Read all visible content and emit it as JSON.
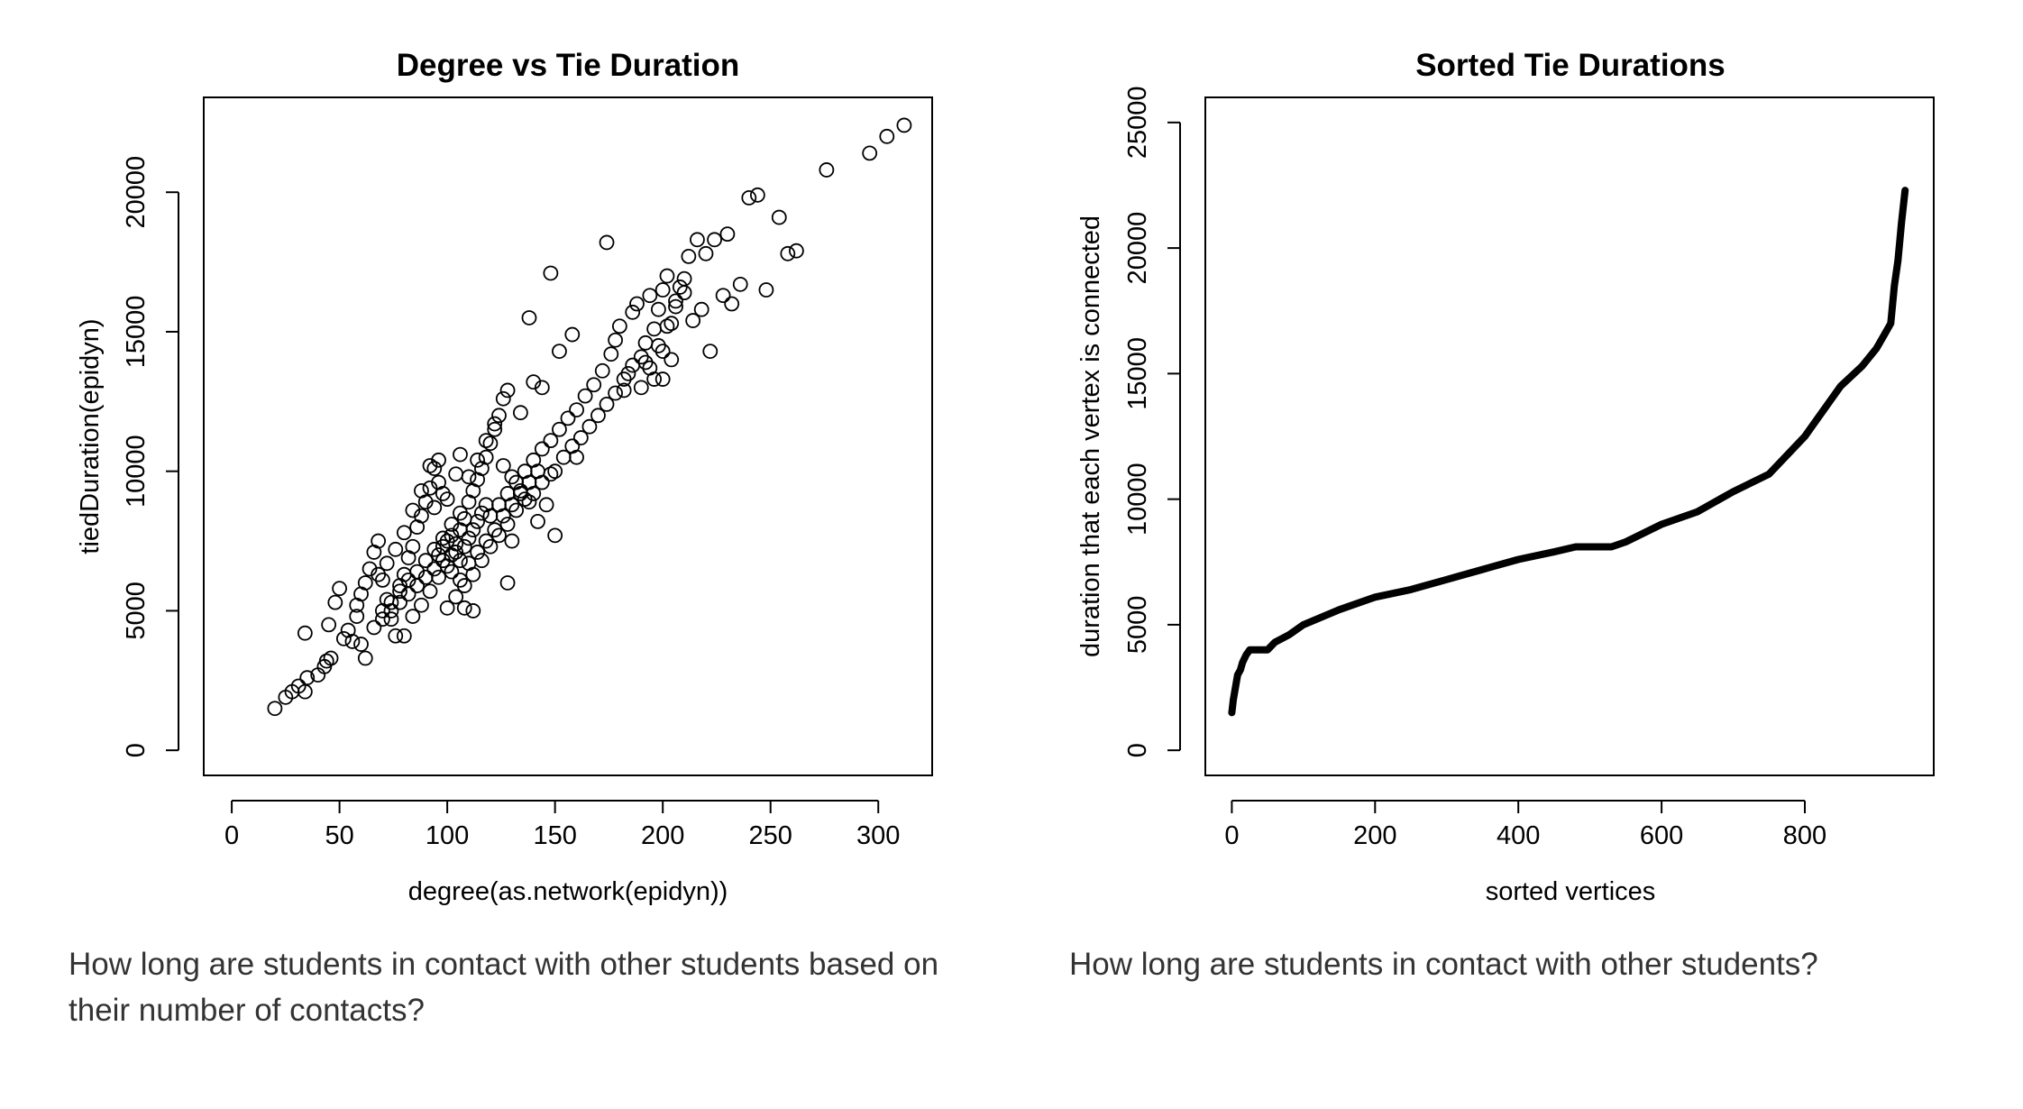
{
  "captions": {
    "left": "How long are students in contact with other students based on their number of contacts?",
    "right": "How long are students in contact with other students?"
  },
  "chart_data": [
    {
      "type": "scatter",
      "title": "Degree vs Tie Duration",
      "xlabel": "degree(as.network(epidyn))",
      "ylabel": "tiedDuration(epidyn)",
      "xlim": [
        -13,
        325
      ],
      "ylim": [
        -900,
        23400
      ],
      "xticks": [
        0,
        50,
        100,
        150,
        200,
        250,
        300
      ],
      "yticks": [
        0,
        5000,
        10000,
        15000,
        20000
      ],
      "marker": "open-circle",
      "points": [
        [
          20,
          1500
        ],
        [
          25,
          1900
        ],
        [
          28,
          2100
        ],
        [
          31,
          2300
        ],
        [
          34,
          2100
        ],
        [
          35,
          2600
        ],
        [
          40,
          2700
        ],
        [
          43,
          3000
        ],
        [
          44,
          3200
        ],
        [
          46,
          3300
        ],
        [
          34,
          4200
        ],
        [
          45,
          4500
        ],
        [
          48,
          5300
        ],
        [
          50,
          5800
        ],
        [
          52,
          4000
        ],
        [
          54,
          4300
        ],
        [
          56,
          3900
        ],
        [
          58,
          4800
        ],
        [
          60,
          3800
        ],
        [
          62,
          3300
        ],
        [
          58,
          5200
        ],
        [
          60,
          5600
        ],
        [
          62,
          6000
        ],
        [
          64,
          6500
        ],
        [
          66,
          7100
        ],
        [
          68,
          7500
        ],
        [
          70,
          6100
        ],
        [
          72,
          5400
        ],
        [
          74,
          4700
        ],
        [
          76,
          4100
        ],
        [
          78,
          5900
        ],
        [
          80,
          6300
        ],
        [
          82,
          6900
        ],
        [
          84,
          7300
        ],
        [
          86,
          8000
        ],
        [
          88,
          8400
        ],
        [
          90,
          8900
        ],
        [
          92,
          9400
        ],
        [
          94,
          10100
        ],
        [
          96,
          10400
        ],
        [
          80,
          4100
        ],
        [
          84,
          4800
        ],
        [
          88,
          5200
        ],
        [
          92,
          5700
        ],
        [
          96,
          6200
        ],
        [
          100,
          6600
        ],
        [
          102,
          7000
        ],
        [
          104,
          7400
        ],
        [
          106,
          7900
        ],
        [
          108,
          8300
        ],
        [
          70,
          5000
        ],
        [
          74,
          5300
        ],
        [
          78,
          5700
        ],
        [
          82,
          6100
        ],
        [
          86,
          6400
        ],
        [
          90,
          6800
        ],
        [
          94,
          7200
        ],
        [
          98,
          7600
        ],
        [
          102,
          8100
        ],
        [
          106,
          8500
        ],
        [
          110,
          8900
        ],
        [
          112,
          9300
        ],
        [
          114,
          9700
        ],
        [
          116,
          10100
        ],
        [
          118,
          10500
        ],
        [
          120,
          11000
        ],
        [
          122,
          11500
        ],
        [
          124,
          12000
        ],
        [
          126,
          12600
        ],
        [
          128,
          12900
        ],
        [
          100,
          5100
        ],
        [
          104,
          5500
        ],
        [
          108,
          5900
        ],
        [
          112,
          6300
        ],
        [
          116,
          6800
        ],
        [
          120,
          7300
        ],
        [
          124,
          7700
        ],
        [
          128,
          8100
        ],
        [
          132,
          8600
        ],
        [
          136,
          9000
        ],
        [
          120,
          8400
        ],
        [
          124,
          8800
        ],
        [
          128,
          9200
        ],
        [
          132,
          9600
        ],
        [
          136,
          10000
        ],
        [
          140,
          10400
        ],
        [
          144,
          10800
        ],
        [
          148,
          11100
        ],
        [
          152,
          11500
        ],
        [
          156,
          11900
        ],
        [
          138,
          15500
        ],
        [
          148,
          17100
        ],
        [
          152,
          14300
        ],
        [
          158,
          14900
        ],
        [
          144,
          13000
        ],
        [
          140,
          13200
        ],
        [
          134,
          12100
        ],
        [
          130,
          7500
        ],
        [
          128,
          6000
        ],
        [
          112,
          5000
        ],
        [
          108,
          5100
        ],
        [
          100,
          9000
        ],
        [
          96,
          9600
        ],
        [
          92,
          10200
        ],
        [
          88,
          9300
        ],
        [
          84,
          8600
        ],
        [
          80,
          7800
        ],
        [
          76,
          7200
        ],
        [
          72,
          6700
        ],
        [
          68,
          6300
        ],
        [
          160,
          10500
        ],
        [
          160,
          12200
        ],
        [
          164,
          12700
        ],
        [
          168,
          13100
        ],
        [
          172,
          13600
        ],
        [
          174,
          18200
        ],
        [
          176,
          14200
        ],
        [
          178,
          14700
        ],
        [
          180,
          15200
        ],
        [
          182,
          12900
        ],
        [
          184,
          13500
        ],
        [
          186,
          15700
        ],
        [
          188,
          16000
        ],
        [
          190,
          14100
        ],
        [
          192,
          14600
        ],
        [
          194,
          16300
        ],
        [
          196,
          15100
        ],
        [
          198,
          15800
        ],
        [
          200,
          16500
        ],
        [
          200,
          13300
        ],
        [
          202,
          17000
        ],
        [
          204,
          15300
        ],
        [
          206,
          16100
        ],
        [
          208,
          16600
        ],
        [
          210,
          16900
        ],
        [
          212,
          17700
        ],
        [
          214,
          15400
        ],
        [
          216,
          18300
        ],
        [
          218,
          15800
        ],
        [
          220,
          17800
        ],
        [
          222,
          14300
        ],
        [
          224,
          18300
        ],
        [
          228,
          16300
        ],
        [
          230,
          18500
        ],
        [
          232,
          16000
        ],
        [
          236,
          16700
        ],
        [
          240,
          19800
        ],
        [
          244,
          19900
        ],
        [
          248,
          16500
        ],
        [
          254,
          19100
        ],
        [
          258,
          17800
        ],
        [
          262,
          17900
        ],
        [
          276,
          20800
        ],
        [
          296,
          21400
        ],
        [
          304,
          22000
        ],
        [
          312,
          22400
        ],
        [
          150,
          10000
        ],
        [
          154,
          10500
        ],
        [
          158,
          10900
        ],
        [
          162,
          11200
        ],
        [
          166,
          11600
        ],
        [
          170,
          12000
        ],
        [
          174,
          12400
        ],
        [
          178,
          12800
        ],
        [
          182,
          13300
        ],
        [
          186,
          13800
        ],
        [
          140,
          9200
        ],
        [
          144,
          9600
        ],
        [
          148,
          9900
        ],
        [
          146,
          8800
        ],
        [
          150,
          7700
        ],
        [
          142,
          8200
        ],
        [
          138,
          8900
        ],
        [
          134,
          9300
        ],
        [
          130,
          9800
        ],
        [
          126,
          10200
        ],
        [
          96,
          7000
        ],
        [
          98,
          7300
        ],
        [
          100,
          7500
        ],
        [
          102,
          7700
        ],
        [
          104,
          7100
        ],
        [
          106,
          6800
        ],
        [
          108,
          7300
        ],
        [
          110,
          7600
        ],
        [
          112,
          7900
        ],
        [
          114,
          8200
        ],
        [
          116,
          8500
        ],
        [
          118,
          8800
        ],
        [
          110,
          9800
        ],
        [
          114,
          10400
        ],
        [
          118,
          11100
        ],
        [
          122,
          11700
        ],
        [
          106,
          10600
        ],
        [
          104,
          9900
        ],
        [
          98,
          9200
        ],
        [
          94,
          8700
        ],
        [
          66,
          4400
        ],
        [
          70,
          4700
        ],
        [
          74,
          5000
        ],
        [
          78,
          5300
        ],
        [
          82,
          5600
        ],
        [
          86,
          5900
        ],
        [
          90,
          6200
        ],
        [
          94,
          6500
        ],
        [
          98,
          6800
        ],
        [
          102,
          6400
        ],
        [
          106,
          6100
        ],
        [
          110,
          6700
        ],
        [
          114,
          7100
        ],
        [
          118,
          7500
        ],
        [
          122,
          7900
        ],
        [
          126,
          8400
        ],
        [
          130,
          8800
        ],
        [
          134,
          9200
        ],
        [
          138,
          9600
        ],
        [
          142,
          10000
        ],
        [
          190,
          13000
        ],
        [
          194,
          13700
        ],
        [
          198,
          14500
        ],
        [
          202,
          15200
        ],
        [
          206,
          15900
        ],
        [
          210,
          16400
        ],
        [
          204,
          14000
        ],
        [
          200,
          14300
        ],
        [
          196,
          13300
        ],
        [
          192,
          13900
        ]
      ]
    },
    {
      "type": "line",
      "title": "Sorted Tie Durations",
      "xlabel": "sorted vertices",
      "ylabel": "duration that each vertex is connected",
      "xlim": [
        -37,
        980
      ],
      "ylim": [
        -1000,
        26000
      ],
      "xticks": [
        0,
        200,
        400,
        600,
        800
      ],
      "yticks": [
        0,
        5000,
        10000,
        15000,
        20000,
        25000
      ],
      "x": [
        0,
        2,
        5,
        8,
        12,
        15,
        20,
        25,
        30,
        40,
        50,
        60,
        80,
        100,
        150,
        200,
        250,
        300,
        350,
        400,
        450,
        480,
        500,
        530,
        550,
        600,
        650,
        700,
        750,
        800,
        850,
        880,
        900,
        910,
        920,
        925,
        930,
        935,
        940
      ],
      "y": [
        1500,
        2000,
        2500,
        3000,
        3200,
        3500,
        3800,
        4000,
        4000,
        4000,
        4000,
        4300,
        4600,
        5000,
        5600,
        6100,
        6400,
        6800,
        7200,
        7600,
        7900,
        8100,
        8100,
        8100,
        8300,
        9000,
        9500,
        10300,
        11000,
        12500,
        14500,
        15300,
        16000,
        16500,
        17000,
        18500,
        19500,
        21000,
        22300
      ]
    }
  ]
}
